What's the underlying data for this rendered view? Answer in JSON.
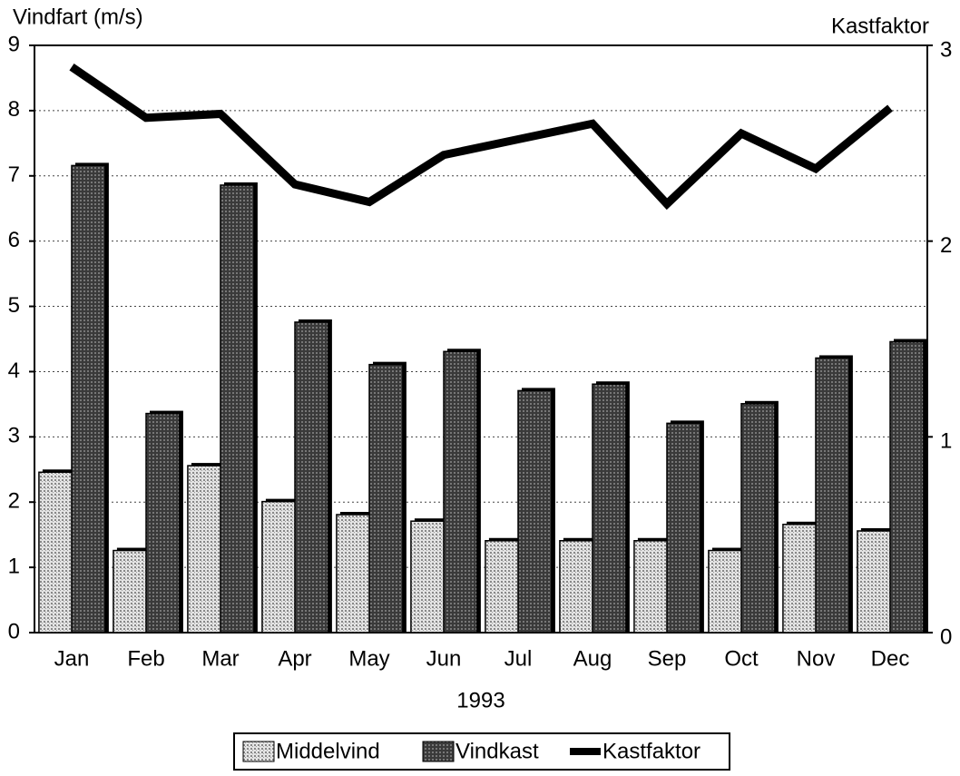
{
  "chart_data": {
    "type": "bar",
    "y_label": "Vindfart (m/s)",
    "y2_label": "Kastfaktor",
    "x_label": "1993",
    "categories": [
      "Jan",
      "Feb",
      "Mar",
      "Apr",
      "May",
      "Jun",
      "Jul",
      "Aug",
      "Sep",
      "Oct",
      "Nov",
      "Dec"
    ],
    "series": [
      {
        "name": "Middelvind",
        "color": "#c8c8c8",
        "values": [
          2.5,
          1.3,
          2.6,
          2.05,
          1.85,
          1.75,
          1.45,
          1.45,
          1.45,
          1.3,
          1.7,
          1.6
        ]
      },
      {
        "name": "Vindkast",
        "color": "#555555",
        "values": [
          7.2,
          3.4,
          6.9,
          4.8,
          4.15,
          4.35,
          3.75,
          3.85,
          3.25,
          3.55,
          4.25,
          4.5
        ]
      },
      {
        "name": "Kastfaktor",
        "color": "#000000",
        "type": "line",
        "axis": "y2",
        "values": [
          2.89,
          2.63,
          2.65,
          2.29,
          2.2,
          2.44,
          2.52,
          2.6,
          2.19,
          2.55,
          2.37,
          2.68
        ]
      }
    ],
    "ylim": [
      0,
      9
    ],
    "yticks": [
      0,
      1,
      2,
      3,
      4,
      5,
      6,
      7,
      8,
      9
    ],
    "y2lim": [
      0,
      3
    ],
    "y2ticks": [
      0,
      1,
      2,
      3
    ],
    "grid": true
  }
}
